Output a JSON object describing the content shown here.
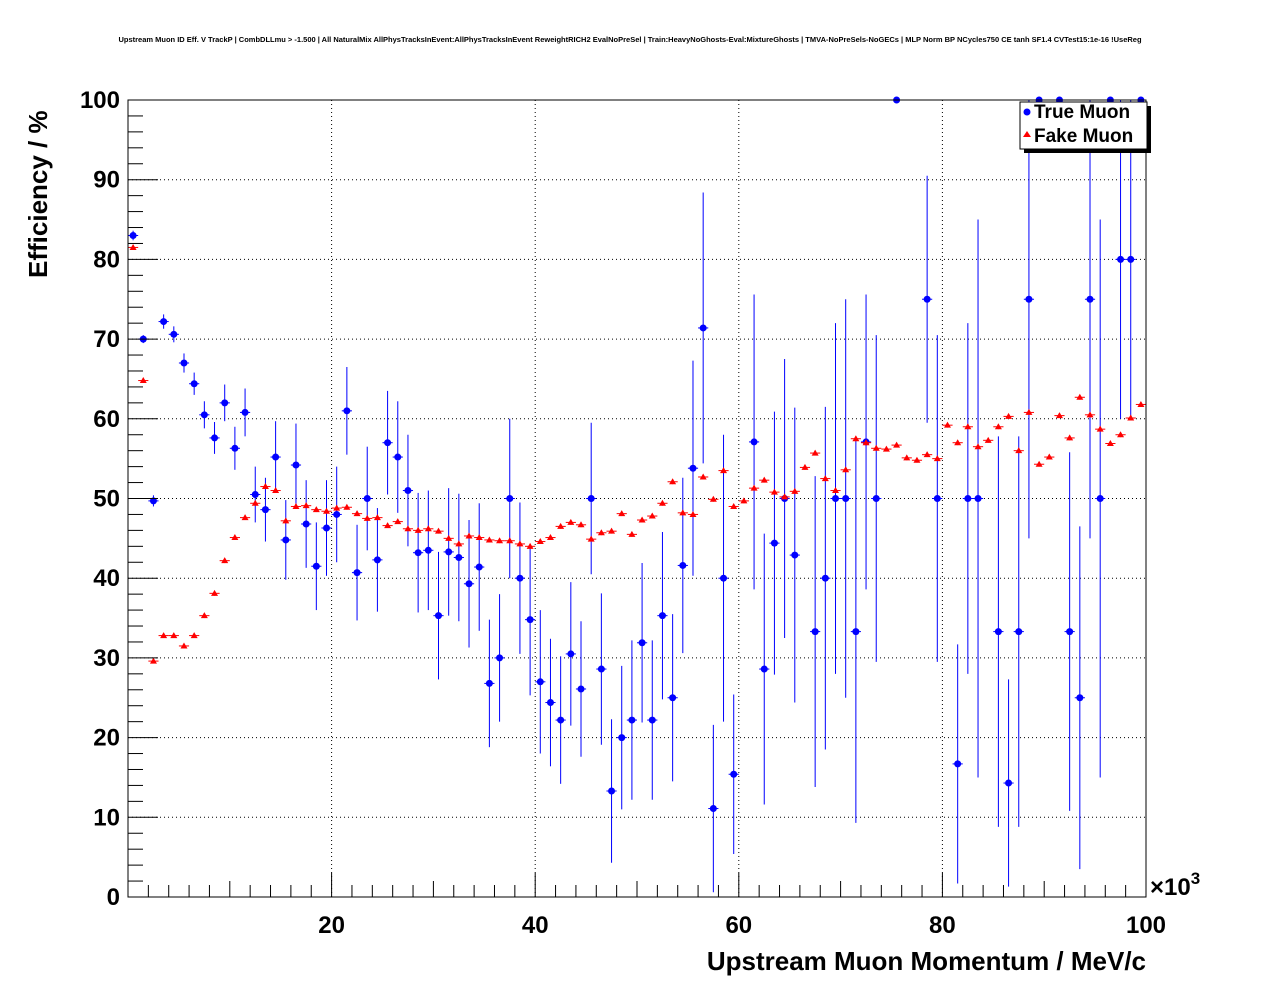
{
  "colors": {
    "true_muon": "#0000ff",
    "fake_muon": "#ff0000",
    "grid": "#000000"
  },
  "chart_data": {
    "type": "scatter",
    "title": "Upstream Muon ID Eff. V TrackP | CombDLLmu > -1.500 | All NaturalMix AllPhysTracksInEvent:AllPhysTracksInEvent ReweightRICH2 EvalNoPreSel | Train:HeavyNoGhosts-Eval:MixtureGhosts | TMVA-NoPreSels-NoGECs | MLP Norm BP NCycles750 CE tanh SF1.4 CVTest15:1e-16 !UseReg",
    "xlabel": "Upstream Muon Momentum / MeV/c",
    "ylabel": "Efficiency / %",
    "x_exponent_prefix": "×10",
    "x_exponent_power": "3",
    "xlim": [
      0,
      100
    ],
    "ylim": [
      0,
      100
    ],
    "x_unit_multiplier": 1000,
    "xticks": [
      "20",
      "40",
      "60",
      "80",
      "100"
    ],
    "yticks": [
      "0",
      "10",
      "20",
      "30",
      "40",
      "50",
      "60",
      "70",
      "80",
      "90",
      "100"
    ],
    "grid": true,
    "legend_position": "top-right",
    "series": [
      {
        "name": "True Muon",
        "marker": "circle",
        "points": [
          [
            0.5,
            83,
            0.6
          ],
          [
            1.5,
            70,
            0.5
          ],
          [
            2.5,
            49.7,
            0.7
          ],
          [
            3.5,
            72.2,
            0.9
          ],
          [
            4.5,
            70.6,
            1.0
          ],
          [
            5.5,
            67,
            1.2
          ],
          [
            6.5,
            64.4,
            1.4
          ],
          [
            7.5,
            60.5,
            1.7
          ],
          [
            8.5,
            57.6,
            2.0
          ],
          [
            9.5,
            62,
            2.3
          ],
          [
            10.5,
            56.3,
            2.7
          ],
          [
            11.5,
            60.8,
            3.0
          ],
          [
            12.5,
            50.5,
            3.5
          ],
          [
            13.5,
            48.6,
            4.0
          ],
          [
            14.5,
            55.2,
            4.5
          ],
          [
            15.5,
            44.8,
            5.0
          ],
          [
            16.5,
            54.2,
            5.2
          ],
          [
            17.5,
            46.8,
            5.5
          ],
          [
            18.5,
            41.5,
            5.5
          ],
          [
            19.5,
            46.3,
            6.0
          ],
          [
            20.5,
            48.0,
            6.0
          ],
          [
            21.5,
            61,
            5.5
          ],
          [
            22.5,
            40.7,
            6.0
          ],
          [
            23.5,
            50.0,
            6.5
          ],
          [
            24.5,
            42.3,
            6.5
          ],
          [
            25.5,
            57.0,
            6.5
          ],
          [
            26.5,
            55.2,
            7.0
          ],
          [
            27.5,
            51.0,
            7.0
          ],
          [
            28.5,
            43.2,
            7.5
          ],
          [
            29.5,
            43.5,
            7.5
          ],
          [
            30.5,
            35.3,
            8.0
          ],
          [
            31.5,
            43.3,
            8.0
          ],
          [
            32.5,
            42.6,
            8.0
          ],
          [
            33.5,
            39.3,
            8.0
          ],
          [
            34.5,
            41.4,
            8.0
          ],
          [
            35.5,
            26.8,
            8.0
          ],
          [
            36.5,
            30.0,
            8.0
          ],
          [
            37.5,
            50.0,
            10.0
          ],
          [
            38.5,
            40.0,
            9.5
          ],
          [
            39.5,
            34.8,
            9.5
          ],
          [
            40.5,
            27.0,
            9.0
          ],
          [
            41.5,
            24.4,
            8.0
          ],
          [
            42.5,
            22.2,
            8.0
          ],
          [
            43.5,
            30.5,
            9.0
          ],
          [
            44.5,
            26.1,
            8.5
          ],
          [
            45.5,
            50.0,
            9.5
          ],
          [
            46.5,
            28.6,
            9.5
          ],
          [
            47.5,
            13.3,
            9.0
          ],
          [
            48.5,
            20.0,
            9.0
          ],
          [
            49.5,
            22.2,
            10.0
          ],
          [
            50.5,
            31.9,
            10.0
          ],
          [
            51.5,
            22.2,
            10.0
          ],
          [
            52.5,
            35.3,
            10.5
          ],
          [
            53.5,
            25.0,
            10.5
          ],
          [
            54.5,
            41.6,
            11.0
          ],
          [
            55.5,
            53.8,
            13.5
          ],
          [
            56.5,
            71.4,
            17.0
          ],
          [
            57.5,
            11.1,
            10.5
          ],
          [
            58.5,
            40.0,
            18.0
          ],
          [
            59.5,
            15.4,
            10.0
          ],
          [
            61.5,
            57.1,
            18.5
          ],
          [
            62.5,
            28.6,
            17.0
          ],
          [
            63.5,
            44.4,
            16.5
          ],
          [
            64.5,
            50.0,
            17.5
          ],
          [
            65.5,
            42.9,
            18.5
          ],
          [
            67.5,
            33.3,
            19.5
          ],
          [
            68.5,
            40.0,
            21.5
          ],
          [
            69.5,
            50.0,
            22.0
          ],
          [
            70.5,
            50.0,
            25.0
          ],
          [
            71.5,
            33.3,
            24.0
          ],
          [
            72.5,
            57.1,
            18.5
          ],
          [
            73.5,
            50.0,
            20.5
          ],
          [
            75.5,
            100,
            0
          ],
          [
            78.5,
            75.0,
            15.5
          ],
          [
            79.5,
            50.0,
            20.5
          ],
          [
            81.5,
            16.7,
            15.0
          ],
          [
            82.5,
            50.0,
            22.0
          ],
          [
            83.5,
            50.0,
            35.0
          ],
          [
            85.5,
            33.3,
            24.5
          ],
          [
            86.5,
            14.3,
            13.0
          ],
          [
            87.5,
            33.3,
            24.5
          ],
          [
            88.5,
            75.0,
            30.0
          ],
          [
            89.5,
            100,
            0
          ],
          [
            91.5,
            100,
            0
          ],
          [
            92.5,
            33.3,
            22.5
          ],
          [
            93.5,
            25.0,
            21.5
          ],
          [
            94.5,
            75.0,
            30.0
          ],
          [
            95.5,
            50.0,
            35.0
          ],
          [
            96.5,
            100,
            0
          ],
          [
            97.5,
            80.0,
            20.0
          ],
          [
            98.5,
            80.0,
            20.0
          ],
          [
            99.5,
            100,
            0
          ]
        ]
      },
      {
        "name": "Fake Muon",
        "marker": "triangle",
        "points": [
          [
            0.5,
            81.5,
            0.3
          ],
          [
            1.5,
            64.8,
            0.3
          ],
          [
            2.5,
            29.6,
            0.3
          ],
          [
            3.5,
            32.8,
            0.3
          ],
          [
            4.5,
            32.8,
            0.3
          ],
          [
            5.5,
            31.5,
            0.3
          ],
          [
            6.5,
            32.8,
            0.3
          ],
          [
            7.5,
            35.3,
            0.3
          ],
          [
            8.5,
            38.1,
            0.3
          ],
          [
            9.5,
            42.2,
            0.3
          ],
          [
            10.5,
            45.1,
            0.3
          ],
          [
            11.5,
            47.6,
            0.3
          ],
          [
            12.5,
            49.4,
            0.3
          ],
          [
            13.5,
            51.5,
            0.3
          ],
          [
            14.5,
            51.0,
            0.3
          ],
          [
            15.5,
            47.2,
            0.3
          ],
          [
            16.5,
            49.0,
            0.3
          ],
          [
            17.5,
            49.1,
            0.3
          ],
          [
            18.5,
            48.6,
            0.3
          ],
          [
            19.5,
            48.4,
            0.3
          ],
          [
            20.5,
            48.8,
            0.3
          ],
          [
            21.5,
            48.9,
            0.3
          ],
          [
            22.5,
            48.1,
            0.3
          ],
          [
            23.5,
            47.5,
            0.3
          ],
          [
            24.5,
            47.6,
            0.3
          ],
          [
            25.5,
            46.6,
            0.3
          ],
          [
            26.5,
            47.1,
            0.3
          ],
          [
            27.5,
            46.2,
            0.3
          ],
          [
            28.5,
            46.0,
            0.3
          ],
          [
            29.5,
            46.2,
            0.3
          ],
          [
            30.5,
            45.9,
            0.3
          ],
          [
            31.5,
            45.0,
            0.3
          ],
          [
            32.5,
            44.3,
            0.3
          ],
          [
            33.5,
            45.3,
            0.3
          ],
          [
            34.5,
            45.1,
            0.3
          ],
          [
            35.5,
            44.8,
            0.3
          ],
          [
            36.5,
            44.7,
            0.3
          ],
          [
            37.5,
            44.7,
            0.3
          ],
          [
            38.5,
            44.3,
            0.3
          ],
          [
            39.5,
            44.0,
            0.3
          ],
          [
            40.5,
            44.6,
            0.3
          ],
          [
            41.5,
            45.1,
            0.3
          ],
          [
            42.5,
            46.5,
            0.3
          ],
          [
            43.5,
            47.0,
            0.3
          ],
          [
            44.5,
            46.7,
            0.3
          ],
          [
            45.5,
            44.9,
            0.3
          ],
          [
            46.5,
            45.7,
            0.3
          ],
          [
            47.5,
            45.9,
            0.3
          ],
          [
            48.5,
            48.1,
            0.3
          ],
          [
            49.5,
            45.5,
            0.3
          ],
          [
            50.5,
            47.3,
            0.3
          ],
          [
            51.5,
            47.8,
            0.3
          ],
          [
            52.5,
            49.4,
            0.3
          ],
          [
            53.5,
            52.1,
            0.3
          ],
          [
            54.5,
            48.2,
            0.3
          ],
          [
            55.5,
            48.0,
            0.3
          ],
          [
            56.5,
            52.7,
            0.3
          ],
          [
            57.5,
            49.9,
            0.3
          ],
          [
            58.5,
            53.5,
            0.3
          ],
          [
            59.5,
            49.0,
            0.3
          ],
          [
            60.5,
            49.7,
            0.3
          ],
          [
            61.5,
            51.3,
            0.3
          ],
          [
            62.5,
            52.3,
            0.3
          ],
          [
            63.5,
            50.8,
            0.3
          ],
          [
            64.5,
            50.2,
            0.3
          ],
          [
            65.5,
            50.9,
            0.3
          ],
          [
            66.5,
            53.9,
            0.3
          ],
          [
            67.5,
            55.7,
            0.3
          ],
          [
            68.5,
            52.5,
            0.3
          ],
          [
            69.5,
            51.0,
            0.3
          ],
          [
            70.5,
            53.6,
            0.3
          ],
          [
            71.5,
            57.5,
            0.3
          ],
          [
            72.5,
            57.0,
            0.3
          ],
          [
            73.5,
            56.3,
            0.3
          ],
          [
            74.5,
            56.2,
            0.3
          ],
          [
            75.5,
            56.7,
            0.3
          ],
          [
            76.5,
            55.1,
            0.3
          ],
          [
            77.5,
            54.8,
            0.3
          ],
          [
            78.5,
            55.5,
            0.3
          ],
          [
            79.5,
            55.0,
            0.3
          ],
          [
            80.5,
            59.2,
            0.3
          ],
          [
            81.5,
            57.0,
            0.3
          ],
          [
            82.5,
            59.0,
            0.3
          ],
          [
            83.5,
            56.5,
            0.3
          ],
          [
            84.5,
            57.3,
            0.3
          ],
          [
            85.5,
            59.0,
            0.3
          ],
          [
            86.5,
            60.3,
            0.3
          ],
          [
            87.5,
            56.0,
            0.3
          ],
          [
            88.5,
            60.8,
            0.3
          ],
          [
            89.5,
            54.3,
            0.3
          ],
          [
            90.5,
            55.2,
            0.3
          ],
          [
            91.5,
            60.4,
            0.3
          ],
          [
            92.5,
            57.6,
            0.3
          ],
          [
            93.5,
            62.7,
            0.3
          ],
          [
            94.5,
            60.5,
            0.3
          ],
          [
            95.5,
            58.7,
            0.3
          ],
          [
            96.5,
            56.9,
            0.3
          ],
          [
            97.5,
            58.0,
            0.3
          ],
          [
            98.5,
            60.1,
            0.3
          ],
          [
            99.5,
            61.8,
            0.3
          ]
        ]
      }
    ]
  }
}
